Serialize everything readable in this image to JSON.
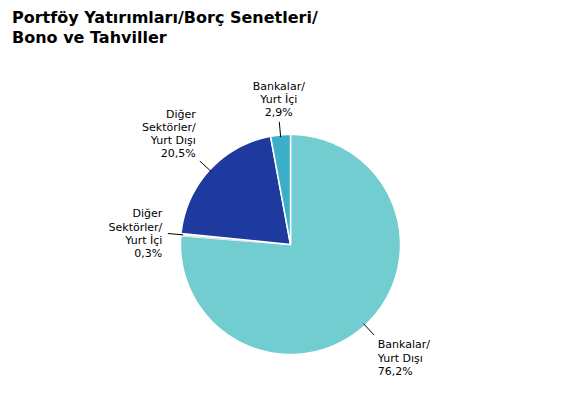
{
  "chart_data": {
    "type": "pie",
    "title": "Portföy Yatırımları/Borç Senetleri/\nBono ve Tahviller",
    "categories": [
      "Bankalar/\nYurt Dışı",
      "Diğer\nSektörler/\nYurt İçi",
      "Diğer\nSektörler/\nYurt Dışı",
      "Bankalar/\nYurt İçi"
    ],
    "values": [
      76.2,
      0.3,
      20.5,
      2.9
    ],
    "value_labels": [
      "76,2%",
      "0,3%",
      "20,5%",
      "2,9%"
    ],
    "data_labels": true,
    "colors": [
      "#72CDD0",
      "#FFFFFF",
      "#1F3A9E",
      "#3BAECA"
    ]
  }
}
